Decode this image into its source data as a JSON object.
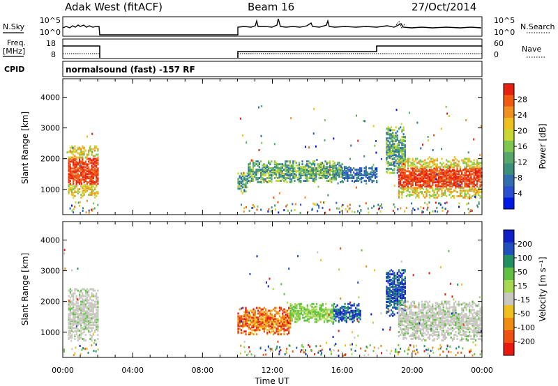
{
  "header": {
    "station": "Adak West (fitACF)",
    "beam": "Beam 16",
    "date": "27/Oct/2014"
  },
  "summary_panels": {
    "nsky_label": "N.Sky",
    "nsearch_label": "N.Search",
    "noise_ticks": [
      "10^5",
      "10^0"
    ],
    "freq_label_line1": "Freq.",
    "freq_label_line2": "[MHz]",
    "freq_ticks": [
      "18",
      "8"
    ],
    "nave_label": "Nave",
    "nave_ticks": [
      "60",
      "0"
    ],
    "cpid_label": "CPID",
    "cpid_text": "normalsound (fast) -157 RF"
  },
  "colors": {
    "power": [
      "#0018e6",
      "#2a4fd0",
      "#2f6fb0",
      "#3c8f7a",
      "#55a86a",
      "#7ec850",
      "#c8d830",
      "#f0c020",
      "#f09020",
      "#f05a10",
      "#e82010"
    ],
    "velocity": [
      "#1020c8",
      "#2050c0",
      "#209060",
      "#60c040",
      "#a8d850",
      "#c8c8c0",
      "#f0c020",
      "#f08c10",
      "#f05010",
      "#e81a10"
    ]
  },
  "chart_data": [
    {
      "type": "heatmap",
      "name": "power",
      "x_ticks": [
        "00:00",
        "04:00",
        "08:00",
        "12:00",
        "16:00",
        "20:00",
        "00:00"
      ],
      "x_label": "Time UT",
      "y_label": "Slant Range [km]",
      "y_ticks": [
        1000,
        2000,
        3000,
        4000
      ],
      "ylim": [
        180,
        4600
      ],
      "xlim_hours": [
        0,
        24
      ],
      "colorbar_label": "Power [dB]",
      "colorbar_ticks": [
        "4",
        "8",
        "12",
        "16",
        "20",
        "24",
        "28"
      ],
      "echo_regions": [
        {
          "t": [
            0.3,
            2.0
          ],
          "range_km": [
            700,
            2400
          ],
          "level": "high"
        },
        {
          "t": [
            10.0,
            10.6
          ],
          "range_km": [
            900,
            1500
          ],
          "level": "mid"
        },
        {
          "t": [
            10.6,
            16.0
          ],
          "range_km": [
            1200,
            1900
          ],
          "level": "mid"
        },
        {
          "t": [
            16.0,
            18.0
          ],
          "range_km": [
            1200,
            1700
          ],
          "level": "low"
        },
        {
          "t": [
            18.5,
            19.6
          ],
          "range_km": [
            1500,
            3000
          ],
          "level": "mid"
        },
        {
          "t": [
            19.2,
            24.0
          ],
          "range_km": [
            700,
            2000
          ],
          "level": "high"
        }
      ]
    },
    {
      "type": "heatmap",
      "name": "velocity",
      "x_ticks": [
        "00:00",
        "04:00",
        "08:00",
        "12:00",
        "16:00",
        "20:00",
        "00:00"
      ],
      "x_label": "Time UT",
      "y_label": "Slant Range [km]",
      "y_ticks": [
        1000,
        2000,
        3000,
        4000
      ],
      "ylim": [
        180,
        4600
      ],
      "xlim_hours": [
        0,
        24
      ],
      "colorbar_label": "Velocity [m s⁻¹]",
      "colorbar_ticks": [
        "200",
        "100",
        "50",
        "15",
        "-15",
        "-50",
        "-100",
        "-200"
      ],
      "echo_regions": [
        {
          "t": [
            0.3,
            2.0
          ],
          "range_km": [
            700,
            2400
          ],
          "velocity": "ground"
        },
        {
          "t": [
            10.0,
            13.0
          ],
          "range_km": [
            900,
            1800
          ],
          "velocity": "negative"
        },
        {
          "t": [
            13.0,
            15.5
          ],
          "range_km": [
            1300,
            1900
          ],
          "velocity": "slightly positive"
        },
        {
          "t": [
            15.5,
            17.0
          ],
          "range_km": [
            1300,
            1900
          ],
          "velocity": "positive"
        },
        {
          "t": [
            18.5,
            19.6
          ],
          "range_km": [
            1500,
            3000
          ],
          "velocity": "positive"
        },
        {
          "t": [
            19.2,
            24.0
          ],
          "range_km": [
            700,
            2000
          ],
          "velocity": "ground"
        }
      ]
    }
  ]
}
